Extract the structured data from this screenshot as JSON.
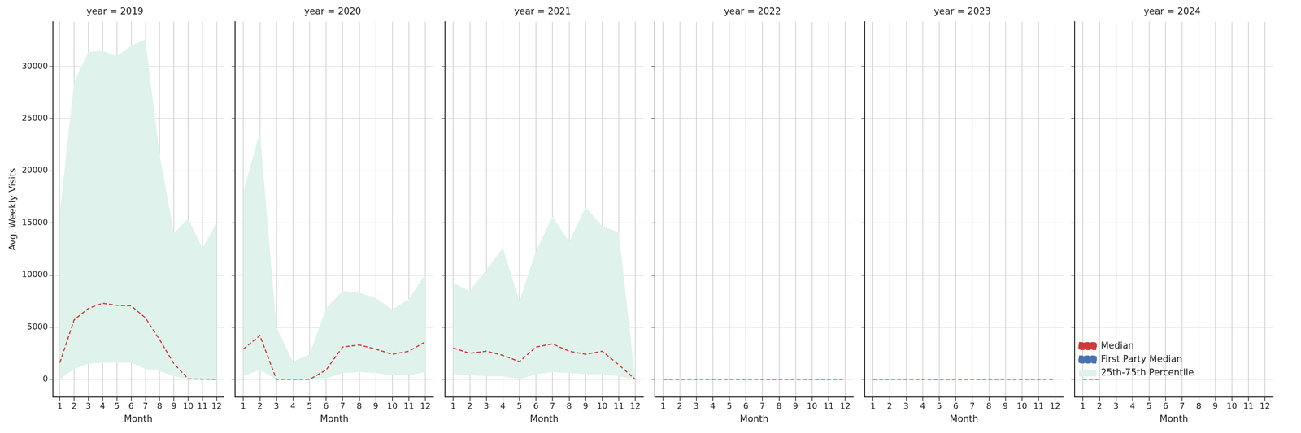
{
  "chart_data": [
    {
      "type": "line",
      "title": "year = 2019",
      "xlabel": "Month",
      "ylabel": "Avg. Weekly Visits",
      "x": [
        1,
        2,
        3,
        4,
        5,
        6,
        7,
        8,
        9,
        10,
        11,
        12
      ],
      "xlim": [
        0.5,
        12.5
      ],
      "xticks": [
        1,
        2,
        3,
        4,
        5,
        6,
        7,
        8,
        9,
        10,
        11,
        12
      ],
      "ylim": [
        -1700,
        34300
      ],
      "yticks": [
        0,
        5000,
        10000,
        15000,
        20000,
        25000,
        30000
      ],
      "grid": true,
      "series": [
        {
          "name": "Median",
          "color": "#d03a3a",
          "line_style": "dashed",
          "values": [
            1600,
            5700,
            6800,
            7300,
            7100,
            7050,
            5900,
            3800,
            1500,
            50,
            20,
            0
          ]
        },
        {
          "name": "First Party Median",
          "color": "#4c72b0",
          "line_style": "dashed",
          "values": [
            null,
            null,
            null,
            null,
            null,
            null,
            null,
            null,
            null,
            null,
            null,
            null
          ]
        },
        {
          "name": "25th-75th Percentile",
          "type": "band",
          "color": "#dff2ec",
          "low": [
            0,
            1000,
            1500,
            1600,
            1600,
            1600,
            1000,
            800,
            300,
            0,
            0,
            0
          ],
          "high": [
            16000,
            28500,
            31400,
            31500,
            31000,
            32000,
            32600,
            21500,
            14000,
            15400,
            12600,
            15000
          ]
        }
      ]
    },
    {
      "type": "line",
      "title": "year = 2020",
      "xlabel": "Month",
      "tick_labels": "x",
      "x": [
        1,
        2,
        3,
        4,
        5,
        6,
        7,
        8,
        9,
        10,
        11,
        12
      ],
      "xlim": [
        0.5,
        12.5
      ],
      "xticks": [
        1,
        2,
        3,
        4,
        5,
        6,
        7,
        8,
        9,
        10,
        11,
        12
      ],
      "ylim": [
        -1700,
        34300
      ],
      "yticks": [
        0,
        5000,
        10000,
        15000,
        20000,
        25000,
        30000
      ],
      "grid": true,
      "series": [
        {
          "name": "Median",
          "color": "#d03a3a",
          "line_style": "dashed",
          "values": [
            2900,
            4200,
            0,
            0,
            0,
            900,
            3100,
            3300,
            2900,
            2400,
            2700,
            3600
          ]
        },
        {
          "name": "First Party Median",
          "color": "#4c72b0",
          "line_style": "dashed",
          "values": [
            null,
            null,
            null,
            null,
            null,
            null,
            null,
            null,
            null,
            null,
            null,
            null
          ]
        },
        {
          "name": "25th-75th Percentile",
          "type": "band",
          "color": "#dff2ec",
          "low": [
            300,
            900,
            0,
            0,
            0,
            100,
            600,
            700,
            600,
            400,
            400,
            700
          ],
          "high": [
            18000,
            23700,
            5000,
            1700,
            2400,
            6800,
            8500,
            8300,
            7800,
            6700,
            7700,
            10100
          ]
        }
      ]
    },
    {
      "type": "line",
      "title": "year = 2021",
      "xlabel": "Month",
      "tick_labels": "x",
      "x": [
        1,
        2,
        3,
        4,
        5,
        6,
        7,
        8,
        9,
        10,
        11,
        12
      ],
      "xlim": [
        0.5,
        12.5
      ],
      "xticks": [
        1,
        2,
        3,
        4,
        5,
        6,
        7,
        8,
        9,
        10,
        11,
        12
      ],
      "ylim": [
        -1700,
        34300
      ],
      "yticks": [
        0,
        5000,
        10000,
        15000,
        20000,
        25000,
        30000
      ],
      "grid": true,
      "series": [
        {
          "name": "Median",
          "color": "#d03a3a",
          "line_style": "dashed",
          "values": [
            3000,
            2500,
            2700,
            2300,
            1700,
            3100,
            3400,
            2700,
            2400,
            2700,
            1400,
            0
          ]
        },
        {
          "name": "First Party Median",
          "color": "#4c72b0",
          "line_style": "dashed",
          "values": [
            null,
            null,
            null,
            null,
            null,
            null,
            null,
            null,
            null,
            null,
            null,
            null
          ]
        },
        {
          "name": "25th-75th Percentile",
          "type": "band",
          "color": "#dff2ec",
          "low": [
            500,
            400,
            300,
            300,
            0,
            500,
            700,
            600,
            500,
            500,
            300,
            0
          ],
          "high": [
            9200,
            8500,
            10500,
            12600,
            7500,
            12300,
            15600,
            13200,
            16500,
            14700,
            14100,
            0
          ]
        }
      ]
    },
    {
      "type": "line",
      "title": "year = 2022",
      "xlabel": "Month",
      "tick_labels": "x",
      "x": [
        1,
        2,
        3,
        4,
        5,
        6,
        7,
        8,
        9,
        10,
        11,
        12
      ],
      "xlim": [
        0.5,
        12.5
      ],
      "xticks": [
        1,
        2,
        3,
        4,
        5,
        6,
        7,
        8,
        9,
        10,
        11,
        12
      ],
      "ylim": [
        -1700,
        34300
      ],
      "yticks": [
        0,
        5000,
        10000,
        15000,
        20000,
        25000,
        30000
      ],
      "grid": true,
      "series": [
        {
          "name": "Median",
          "color": "#d03a3a",
          "line_style": "dashed",
          "values": [
            0,
            0,
            0,
            0,
            0,
            0,
            0,
            0,
            0,
            0,
            0,
            0
          ]
        },
        {
          "name": "First Party Median",
          "color": "#4c72b0",
          "line_style": "dashed",
          "values": [
            null,
            null,
            null,
            null,
            null,
            null,
            null,
            null,
            null,
            null,
            null,
            null
          ]
        },
        {
          "name": "25th-75th Percentile",
          "type": "band",
          "color": "#dff2ec",
          "low": [
            0,
            0,
            0,
            0,
            0,
            0,
            0,
            0,
            0,
            0,
            0,
            0
          ],
          "high": [
            0,
            0,
            0,
            0,
            0,
            0,
            0,
            0,
            0,
            0,
            0,
            0
          ]
        }
      ]
    },
    {
      "type": "line",
      "title": "year = 2023",
      "xlabel": "Month",
      "tick_labels": "x",
      "x": [
        1,
        2,
        3,
        4,
        5,
        6,
        7,
        8,
        9,
        10,
        11,
        12
      ],
      "xlim": [
        0.5,
        12.5
      ],
      "xticks": [
        1,
        2,
        3,
        4,
        5,
        6,
        7,
        8,
        9,
        10,
        11,
        12
      ],
      "ylim": [
        -1700,
        34300
      ],
      "yticks": [
        0,
        5000,
        10000,
        15000,
        20000,
        25000,
        30000
      ],
      "grid": true,
      "series": [
        {
          "name": "Median",
          "color": "#d03a3a",
          "line_style": "dashed",
          "values": [
            0,
            0,
            0,
            0,
            0,
            0,
            0,
            0,
            0,
            0,
            0,
            0
          ]
        },
        {
          "name": "First Party Median",
          "color": "#4c72b0",
          "line_style": "dashed",
          "values": [
            null,
            null,
            null,
            null,
            null,
            null,
            null,
            null,
            null,
            null,
            null,
            null
          ]
        },
        {
          "name": "25th-75th Percentile",
          "type": "band",
          "color": "#dff2ec",
          "low": [
            0,
            0,
            0,
            0,
            0,
            0,
            0,
            0,
            0,
            0,
            0,
            0
          ],
          "high": [
            0,
            0,
            0,
            0,
            0,
            0,
            0,
            0,
            0,
            0,
            0,
            0
          ]
        }
      ]
    },
    {
      "type": "line",
      "title": "year = 2024",
      "xlabel": "Month",
      "tick_labels": "x",
      "legend": "upper right",
      "x": [
        1,
        2,
        3,
        4,
        5,
        6,
        7,
        8,
        9,
        10,
        11,
        12
      ],
      "xlim": [
        0.5,
        12.5
      ],
      "xticks": [
        1,
        2,
        3,
        4,
        5,
        6,
        7,
        8,
        9,
        10,
        11,
        12
      ],
      "ylim": [
        -1700,
        34300
      ],
      "yticks": [
        0,
        5000,
        10000,
        15000,
        20000,
        25000,
        30000
      ],
      "grid": true,
      "series": [
        {
          "name": "Median",
          "color": "#d03a3a",
          "line_style": "dashed",
          "values": [
            0,
            0,
            null,
            null,
            null,
            null,
            null,
            null,
            null,
            null,
            null,
            null
          ]
        },
        {
          "name": "First Party Median",
          "color": "#4c72b0",
          "line_style": "dashed",
          "values": [
            null,
            null,
            null,
            null,
            null,
            null,
            null,
            null,
            null,
            null,
            null,
            null
          ]
        },
        {
          "name": "25th-75th Percentile",
          "type": "band",
          "color": "#dff2ec",
          "low": [
            0,
            0,
            null,
            null,
            null,
            null,
            null,
            null,
            null,
            null,
            null,
            null
          ],
          "high": [
            0,
            0,
            null,
            null,
            null,
            null,
            null,
            null,
            null,
            null,
            null,
            null
          ]
        }
      ]
    }
  ]
}
